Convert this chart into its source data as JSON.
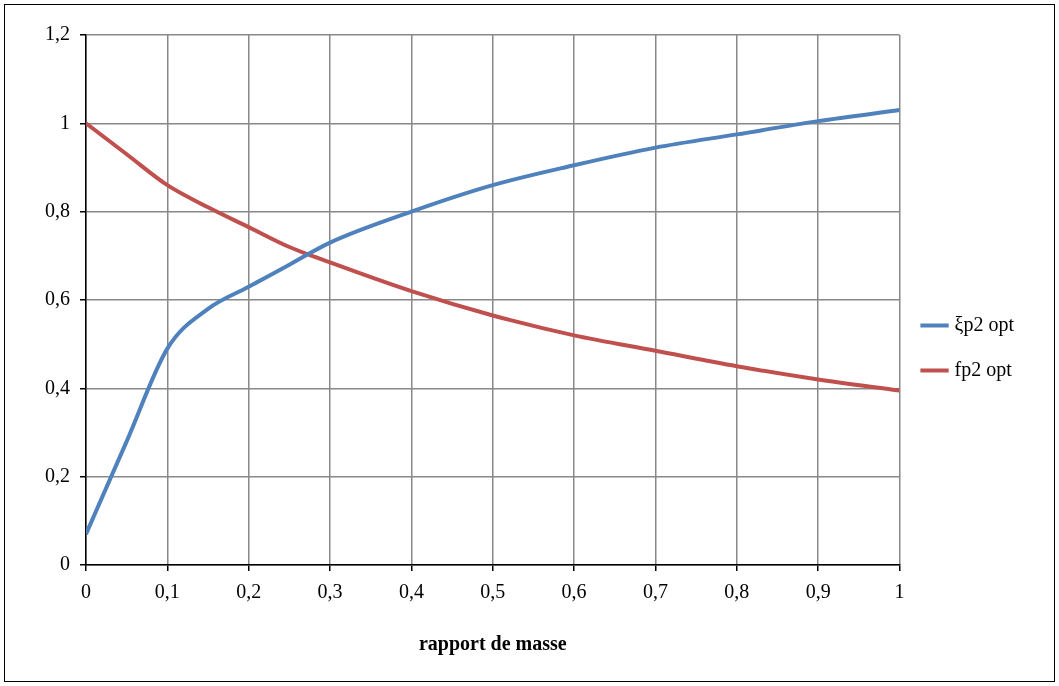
{
  "chart_data": {
    "type": "line",
    "xlabel": "rapport de masse",
    "x": [
      0,
      0.05,
      0.1,
      0.15,
      0.2,
      0.25,
      0.3,
      0.4,
      0.5,
      0.6,
      0.7,
      0.8,
      0.9,
      1
    ],
    "series": [
      {
        "name": "ξp2 opt",
        "color": "#4f81bd",
        "values": [
          0.07,
          0.28,
          0.49,
          0.58,
          0.63,
          0.68,
          0.73,
          0.8,
          0.86,
          0.905,
          0.945,
          0.975,
          1.005,
          1.03
        ]
      },
      {
        "name": "fp2 opt",
        "color": "#c0504d",
        "values": [
          1,
          0.93,
          0.86,
          0.81,
          0.765,
          0.72,
          0.685,
          0.62,
          0.565,
          0.52,
          0.485,
          0.45,
          0.42,
          0.395
        ]
      }
    ],
    "xlim": [
      0,
      1
    ],
    "xticks": [
      0,
      {
        "value": 0.1,
        "label": "0,1"
      },
      {
        "value": 0.2,
        "label": "0,2"
      },
      {
        "value": 0.3,
        "label": "0,3"
      },
      {
        "value": 0.4,
        "label": "0,4"
      },
      {
        "value": 0.5,
        "label": "0,5"
      },
      {
        "value": 0.6,
        "label": "0,6"
      },
      {
        "value": 0.7,
        "label": "0,7"
      },
      {
        "value": 0.8,
        "label": "0,8"
      },
      {
        "value": 0.9,
        "label": "0,9"
      },
      1
    ],
    "ylim": [
      0,
      1.2
    ],
    "yticks": [
      0,
      {
        "value": 0.2,
        "label": "0,2"
      },
      {
        "value": 0.4,
        "label": "0,4"
      },
      {
        "value": 0.6,
        "label": "0,6"
      },
      {
        "value": 0.8,
        "label": "0,8"
      },
      1,
      {
        "value": 1.2,
        "label": "1,2"
      }
    ],
    "grid": true,
    "legend": "right",
    "marker": "none",
    "line_style": "solid"
  }
}
